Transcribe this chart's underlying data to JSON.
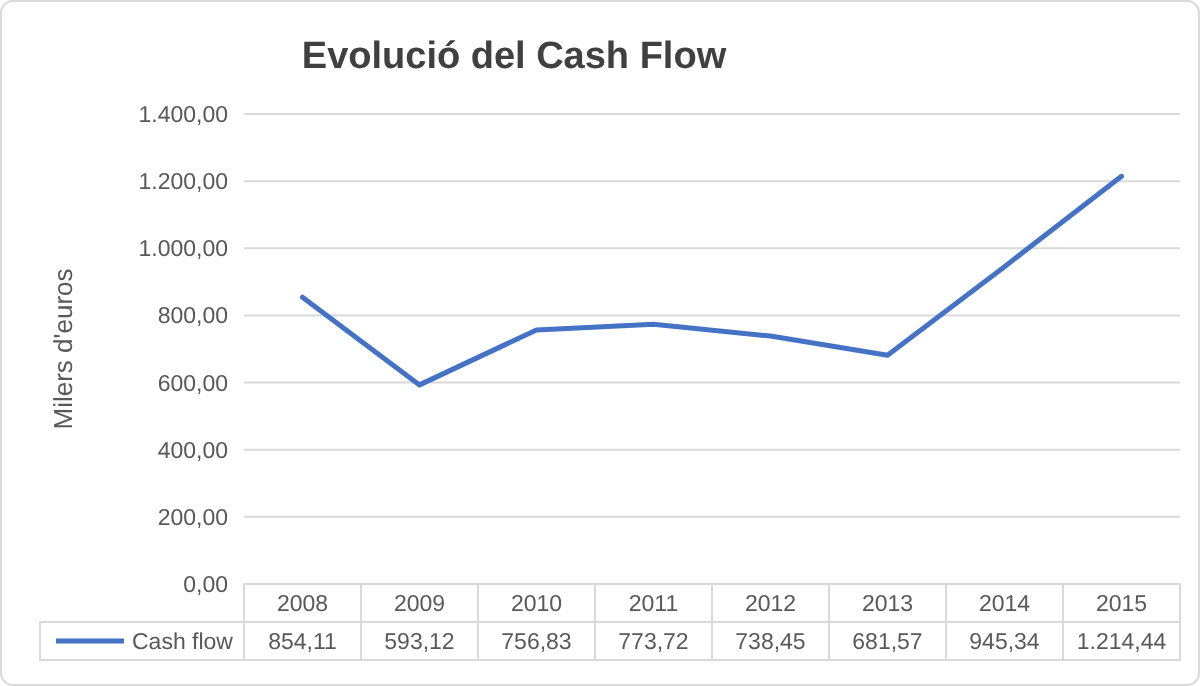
{
  "chart_data": {
    "type": "line",
    "title": "Evolució del Cash Flow",
    "ylabel": "Milers d'euros",
    "categories": [
      "2008",
      "2009",
      "2010",
      "2011",
      "2012",
      "2013",
      "2014",
      "2015"
    ],
    "series": [
      {
        "name": "Cash flow",
        "color": "#4472c4",
        "values": [
          854.11,
          593.12,
          756.83,
          773.72,
          738.45,
          681.57,
          945.34,
          1214.44
        ],
        "value_labels": [
          "854,11",
          "593,12",
          "756,83",
          "773,72",
          "738,45",
          "681,57",
          "945,34",
          "1.214,44"
        ]
      }
    ],
    "ylim": [
      0,
      1400
    ],
    "yticks": [
      {
        "value": 0,
        "label": "0,00"
      },
      {
        "value": 200,
        "label": "200,00"
      },
      {
        "value": 400,
        "label": "400,00"
      },
      {
        "value": 600,
        "label": "600,00"
      },
      {
        "value": 800,
        "label": "800,00"
      },
      {
        "value": 1000,
        "label": "1.000,00"
      },
      {
        "value": 1200,
        "label": "1.200,00"
      },
      {
        "value": 1400,
        "label": "1.400,00"
      }
    ],
    "grid": "y",
    "legend": "bottom",
    "marker": "none",
    "line_style": "solid"
  }
}
